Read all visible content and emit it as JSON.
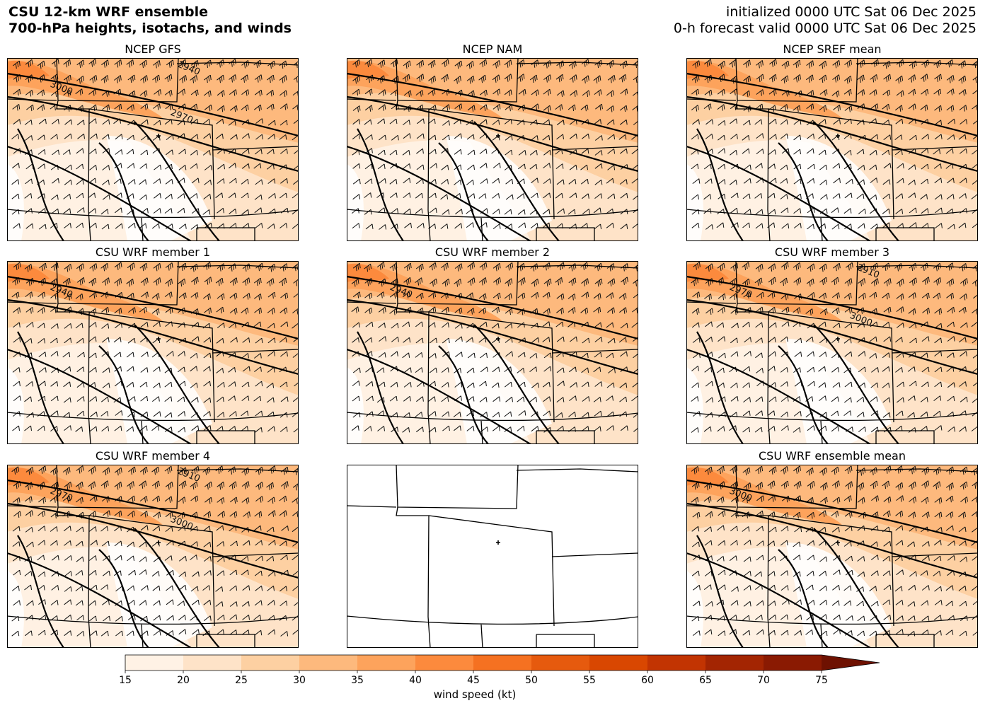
{
  "header": {
    "title_line1": "CSU 12-km WRF ensemble",
    "title_line2": "700-hPa heights, isotachs, and winds",
    "init_line": "initialized 0000 UTC Sat 06 Dec 2025",
    "valid_line": "0-h forecast valid 0000 UTC Sat 06 Dec 2025"
  },
  "panels": [
    {
      "title": "NCEP GFS",
      "has_data": true,
      "contour_labels": [
        "3000",
        "2940",
        "2970"
      ]
    },
    {
      "title": "NCEP NAM",
      "has_data": true,
      "contour_labels": []
    },
    {
      "title": "NCEP SREF mean",
      "has_data": true,
      "contour_labels": []
    },
    {
      "title": "CSU WRF member 1",
      "has_data": true,
      "contour_labels": [
        "2940"
      ]
    },
    {
      "title": "CSU WRF member 2",
      "has_data": true,
      "contour_labels": [
        "2940"
      ]
    },
    {
      "title": "CSU WRF member 3",
      "has_data": true,
      "contour_labels": [
        "2970",
        "2910",
        "3000"
      ]
    },
    {
      "title": "CSU WRF member 4",
      "has_data": true,
      "contour_labels": [
        "2970",
        "2910",
        "3000"
      ]
    },
    {
      "title": "",
      "has_data": false,
      "contour_labels": []
    },
    {
      "title": "CSU WRF ensemble mean",
      "has_data": true,
      "contour_labels": [
        "3000"
      ]
    }
  ],
  "colorbar": {
    "label": "wind speed (kt)",
    "ticks": [
      "15",
      "20",
      "25",
      "30",
      "35",
      "40",
      "45",
      "50",
      "55",
      "60",
      "65",
      "70",
      "75"
    ],
    "colors": [
      "#fff2e5",
      "#fee3c8",
      "#fdd0a2",
      "#fdb97d",
      "#fda35c",
      "#fc8a3d",
      "#f57121",
      "#e65a0e",
      "#d94701",
      "#c23402",
      "#a32502",
      "#8a1a02",
      "#6e1101"
    ]
  }
}
